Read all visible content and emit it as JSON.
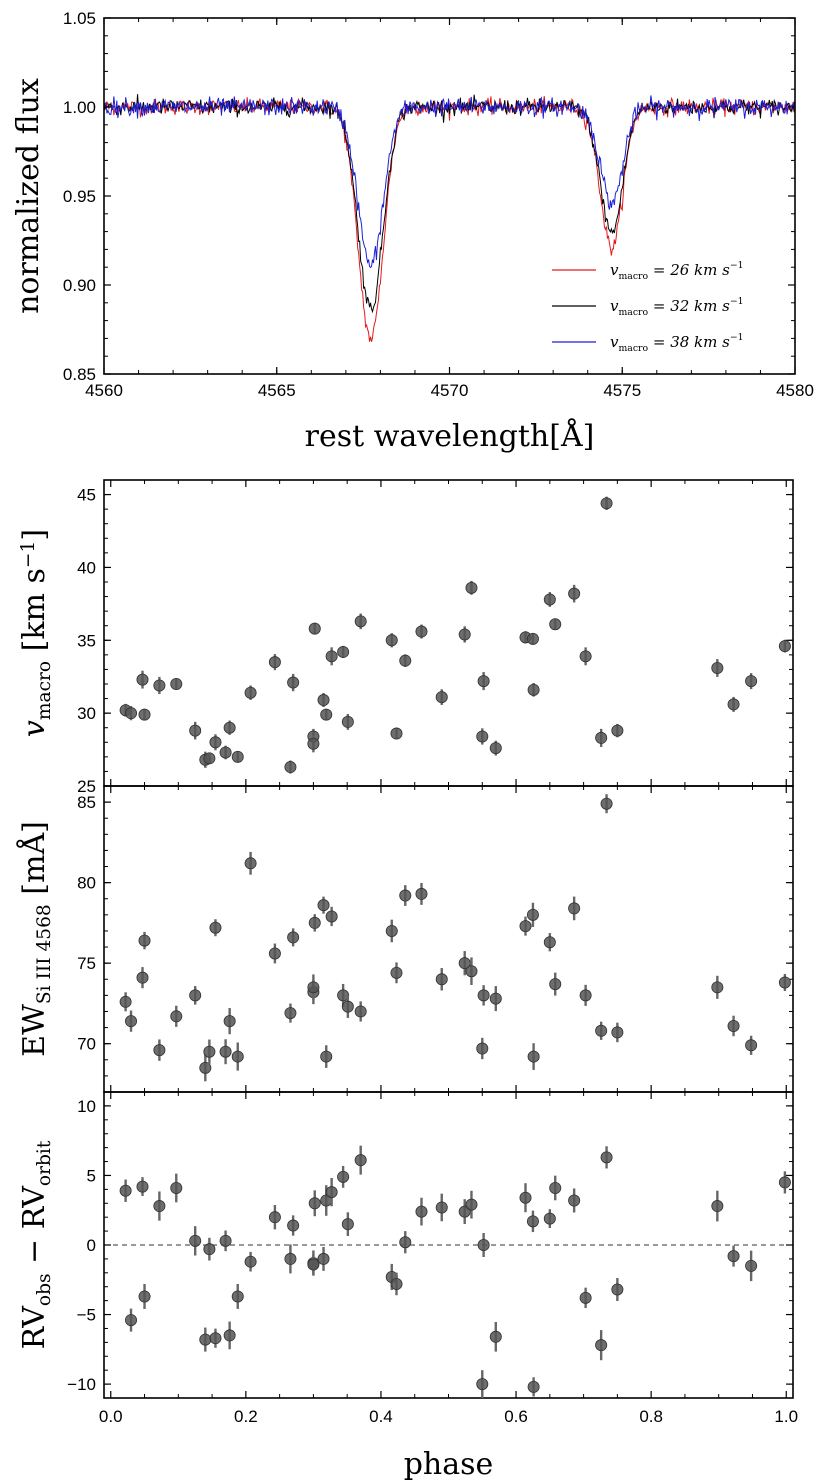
{
  "chart_data": [
    {
      "type": "line",
      "title": "",
      "xlabel": "rest wavelength[Å]",
      "ylabel": "normalized flux",
      "xlim": [
        4560,
        4580
      ],
      "ylim": [
        0.85,
        1.05
      ],
      "xticks": [
        4560,
        4565,
        4570,
        4575,
        4580
      ],
      "yticks": [
        0.85,
        0.9,
        0.95,
        1.0,
        1.05
      ],
      "xtick_labels": [
        "4560",
        "4565",
        "4570",
        "4575",
        "4580"
      ],
      "ytick_labels": [
        "0.85",
        "0.90",
        "0.95",
        "1.00",
        "1.05"
      ],
      "grid": false,
      "legend": "lower-right",
      "lines": [
        {
          "center": 4567.8,
          "width": 0.33,
          "blend_center": 4567.45,
          "blend_width": 0.3,
          "blend_ratio": 0.35
        },
        {
          "center": 4574.75,
          "width": 0.3,
          "blend_center": 4574.45,
          "blend_width": 0.3,
          "blend_ratio": 0.3
        }
      ],
      "series": [
        {
          "legend_name": "v",
          "legend_sub": "macro",
          "legend_value": " = 26 km s",
          "legend_sup": "−1",
          "color": "#e31a1c",
          "depths": [
            0.108,
            0.066
          ],
          "noise": 0.0022
        },
        {
          "legend_name": "v",
          "legend_sub": "macro",
          "legend_value": " = 32 km s",
          "legend_sup": "−1",
          "color": "#000000",
          "depths": [
            0.094,
            0.059
          ],
          "noise": 0.0022
        },
        {
          "legend_name": "v",
          "legend_sub": "macro",
          "legend_value": " = 38 km s",
          "legend_sup": "−1",
          "color": "#1f1fd6",
          "depths": [
            0.074,
            0.045
          ],
          "noise": 0.0025
        }
      ]
    },
    {
      "type": "scatter",
      "ylabel_main": "v",
      "ylabel_sub": "macro",
      "ylabel_units": " [km s",
      "ylabel_sup": "−1",
      "ylabel_close": "]",
      "xlim": [
        -0.01,
        1.01
      ],
      "ylim": [
        25,
        46
      ],
      "yticks": [
        25,
        30,
        35,
        40,
        45
      ],
      "ytick_labels": [
        "25",
        "30",
        "35",
        "40",
        "45"
      ],
      "marker_color": "#555555",
      "points": [
        [
          0.022,
          30.2
        ],
        [
          0.03,
          30.0
        ],
        [
          0.047,
          32.3
        ],
        [
          0.05,
          29.9
        ],
        [
          0.072,
          31.9
        ],
        [
          0.097,
          32.0
        ],
        [
          0.125,
          28.8
        ],
        [
          0.14,
          26.8
        ],
        [
          0.146,
          26.9
        ],
        [
          0.155,
          28.0
        ],
        [
          0.17,
          27.3
        ],
        [
          0.176,
          29.0
        ],
        [
          0.188,
          27.0
        ],
        [
          0.207,
          31.4
        ],
        [
          0.243,
          33.5
        ],
        [
          0.266,
          26.3
        ],
        [
          0.27,
          32.1
        ],
        [
          0.3,
          28.4
        ],
        [
          0.3,
          27.9
        ],
        [
          0.302,
          35.8
        ],
        [
          0.315,
          30.9
        ],
        [
          0.319,
          29.9
        ],
        [
          0.327,
          33.9
        ],
        [
          0.344,
          34.2
        ],
        [
          0.351,
          29.4
        ],
        [
          0.37,
          36.3
        ],
        [
          0.416,
          35.0
        ],
        [
          0.423,
          28.6
        ],
        [
          0.436,
          33.6
        ],
        [
          0.46,
          35.6
        ],
        [
          0.49,
          31.1
        ],
        [
          0.524,
          35.4
        ],
        [
          0.534,
          38.6
        ],
        [
          0.552,
          32.2
        ],
        [
          0.55,
          28.4
        ],
        [
          0.57,
          27.6
        ],
        [
          0.614,
          35.2
        ],
        [
          0.625,
          35.1
        ],
        [
          0.626,
          31.6
        ],
        [
          0.65,
          37.8
        ],
        [
          0.658,
          36.1
        ],
        [
          0.686,
          38.2
        ],
        [
          0.703,
          33.9
        ],
        [
          0.726,
          28.3
        ],
        [
          0.734,
          44.4
        ],
        [
          0.75,
          28.8
        ],
        [
          0.898,
          33.1
        ],
        [
          0.922,
          30.6
        ],
        [
          0.948,
          32.2
        ],
        [
          0.998,
          34.6
        ]
      ],
      "errors": 0.5
    },
    {
      "type": "scatter",
      "ylabel_main": "EW",
      "ylabel_sub": "Si III 4568",
      "ylabel_units": " [mÅ]",
      "xlim": [
        -0.01,
        1.01
      ],
      "ylim": [
        67,
        86
      ],
      "yticks": [
        70,
        75,
        80,
        85
      ],
      "ytick_labels": [
        "70",
        "75",
        "80",
        "85"
      ],
      "marker_color": "#555555",
      "points": [
        [
          0.022,
          72.6
        ],
        [
          0.03,
          71.4
        ],
        [
          0.047,
          74.1
        ],
        [
          0.05,
          76.4
        ],
        [
          0.072,
          69.6
        ],
        [
          0.097,
          71.7
        ],
        [
          0.125,
          73.0
        ],
        [
          0.14,
          68.5
        ],
        [
          0.146,
          69.5
        ],
        [
          0.155,
          77.2
        ],
        [
          0.17,
          69.5
        ],
        [
          0.176,
          71.4
        ],
        [
          0.188,
          69.2
        ],
        [
          0.207,
          81.2
        ],
        [
          0.243,
          75.6
        ],
        [
          0.266,
          71.9
        ],
        [
          0.27,
          76.6
        ],
        [
          0.3,
          73.2
        ],
        [
          0.3,
          73.5
        ],
        [
          0.302,
          77.5
        ],
        [
          0.315,
          78.6
        ],
        [
          0.319,
          69.2
        ],
        [
          0.327,
          77.9
        ],
        [
          0.344,
          73.0
        ],
        [
          0.351,
          72.3
        ],
        [
          0.37,
          72.0
        ],
        [
          0.416,
          77.0
        ],
        [
          0.423,
          74.4
        ],
        [
          0.436,
          79.2
        ],
        [
          0.46,
          79.3
        ],
        [
          0.49,
          74.0
        ],
        [
          0.524,
          75.0
        ],
        [
          0.534,
          74.5
        ],
        [
          0.552,
          73.0
        ],
        [
          0.55,
          69.7
        ],
        [
          0.57,
          72.8
        ],
        [
          0.614,
          77.3
        ],
        [
          0.625,
          78.0
        ],
        [
          0.626,
          69.2
        ],
        [
          0.65,
          76.3
        ],
        [
          0.658,
          73.7
        ],
        [
          0.686,
          78.4
        ],
        [
          0.703,
          73.0
        ],
        [
          0.726,
          70.8
        ],
        [
          0.734,
          84.9
        ],
        [
          0.75,
          70.7
        ],
        [
          0.898,
          73.5
        ],
        [
          0.922,
          71.1
        ],
        [
          0.948,
          69.9
        ],
        [
          0.998,
          73.8
        ]
      ],
      "errors": 0.7
    },
    {
      "type": "scatter",
      "ylabel_main": "RV",
      "ylabel_sub": "obs",
      "ylabel_mid": " − RV",
      "ylabel_sub2": "orbit",
      "xlabel": "phase",
      "xlim": [
        -0.01,
        1.01
      ],
      "ylim": [
        -11,
        11
      ],
      "xticks": [
        0.0,
        0.2,
        0.4,
        0.6,
        0.8,
        1.0
      ],
      "xtick_labels": [
        "0.0",
        "0.2",
        "0.4",
        "0.6",
        "0.8",
        "1.0"
      ],
      "yticks": [
        -10,
        -5,
        0,
        5,
        10
      ],
      "ytick_labels": [
        "−10",
        "−5",
        "0",
        "5",
        "10"
      ],
      "zero_line": true,
      "marker_color": "#555555",
      "points": [
        [
          0.022,
          3.9
        ],
        [
          0.03,
          -5.4
        ],
        [
          0.047,
          4.2
        ],
        [
          0.05,
          -3.7
        ],
        [
          0.072,
          2.8
        ],
        [
          0.097,
          4.1
        ],
        [
          0.125,
          0.3
        ],
        [
          0.14,
          -6.8
        ],
        [
          0.146,
          -0.3
        ],
        [
          0.155,
          -6.7
        ],
        [
          0.17,
          0.3
        ],
        [
          0.176,
          -6.5
        ],
        [
          0.188,
          -3.7
        ],
        [
          0.207,
          -1.2
        ],
        [
          0.243,
          2.0
        ],
        [
          0.266,
          -1.0
        ],
        [
          0.27,
          1.4
        ],
        [
          0.3,
          -1.3
        ],
        [
          0.3,
          -1.4
        ],
        [
          0.302,
          3.0
        ],
        [
          0.315,
          -1.0
        ],
        [
          0.319,
          3.2
        ],
        [
          0.327,
          3.8
        ],
        [
          0.344,
          4.9
        ],
        [
          0.351,
          1.5
        ],
        [
          0.37,
          6.1
        ],
        [
          0.416,
          -2.3
        ],
        [
          0.423,
          -2.8
        ],
        [
          0.436,
          0.2
        ],
        [
          0.46,
          2.4
        ],
        [
          0.49,
          2.7
        ],
        [
          0.524,
          2.4
        ],
        [
          0.534,
          2.9
        ],
        [
          0.552,
          0.0
        ],
        [
          0.55,
          -10.0
        ],
        [
          0.57,
          -6.6
        ],
        [
          0.614,
          3.4
        ],
        [
          0.625,
          1.7
        ],
        [
          0.626,
          -10.2
        ],
        [
          0.65,
          1.9
        ],
        [
          0.658,
          4.1
        ],
        [
          0.686,
          3.2
        ],
        [
          0.703,
          -3.8
        ],
        [
          0.726,
          -7.2
        ],
        [
          0.734,
          6.3
        ],
        [
          0.75,
          -3.2
        ],
        [
          0.898,
          2.8
        ],
        [
          0.922,
          -0.8
        ],
        [
          0.948,
          -1.5
        ],
        [
          0.998,
          4.5
        ]
      ],
      "errors": 0.9
    }
  ]
}
